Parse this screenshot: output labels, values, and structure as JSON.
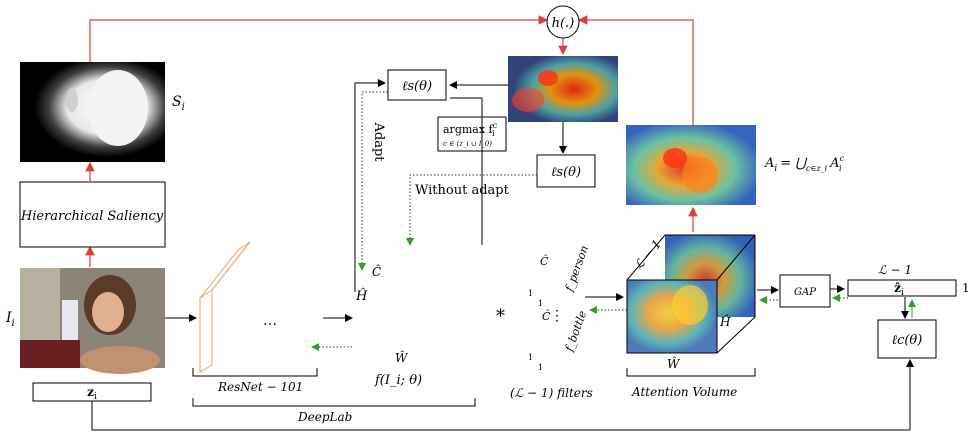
{
  "labels": {
    "h_func": "h(.)",
    "saliency_map": "S",
    "saliency_map_sub": "i",
    "hierarchical_saliency": "Hierarchical Saliency",
    "input_image": "I",
    "input_image_sub": "i",
    "labels_z": "z",
    "labels_z_sub": "i",
    "loss_s_top": "ℓ",
    "loss_s_top_rest": "s(θ)",
    "loss_s_mid": "ℓ",
    "loss_s_mid_rest": "s(θ)",
    "argmax_main": "argmax f",
    "argmax_sup": "c",
    "argmax_sub": "i",
    "argmax_cond": "c ∈ (z_i ∪ l_0)",
    "adapt": "Adapt",
    "without_adapt": "Without adapt",
    "ellipsis": "…",
    "h_hat_left": "Ĥ",
    "w_hat": "Ŵ",
    "c_hat_left": "Ĉ",
    "f_func": "f(I_i; θ)",
    "star": "*",
    "c_hat_filters": "Ĉ",
    "c_hat_filters2": "Ĉ",
    "f_person": "f_person",
    "f_bottle": "f_bottle",
    "one_a": "1",
    "one_b": "1",
    "one_c": "1",
    "one_d": "1",
    "vdots": "⋮",
    "filters": "(ℒ − 1) filters",
    "resnet": "ResNet − 101",
    "deeplab": "DeepLab",
    "attention_volume": "Attention Volume",
    "cube_l_minus_1": "ℒ − 1",
    "cube_h_hat": "Ĥ",
    "cube_w_hat": "Ŵ",
    "gap": "GAP",
    "z_hat_top": "ℒ − 1",
    "z_hat": "ẑ",
    "z_hat_sub": "i",
    "z_hat_one": "1",
    "loss_c": "ℓ",
    "loss_c_rest": "c(θ)",
    "attn_eq_lhs": "A",
    "attn_eq_lhs_sub": "i",
    "attn_eq_rhs": "= ⋃",
    "attn_eq_union_sub": "c∈z_i",
    "attn_eq_term": "A",
    "attn_eq_term_sup": "c",
    "attn_eq_term_sub": "i"
  },
  "colors": {
    "red_line": "#d9403a",
    "green_arrow": "#2ea02e",
    "dotted": "#333333",
    "orange_outline": "#f0a060"
  }
}
